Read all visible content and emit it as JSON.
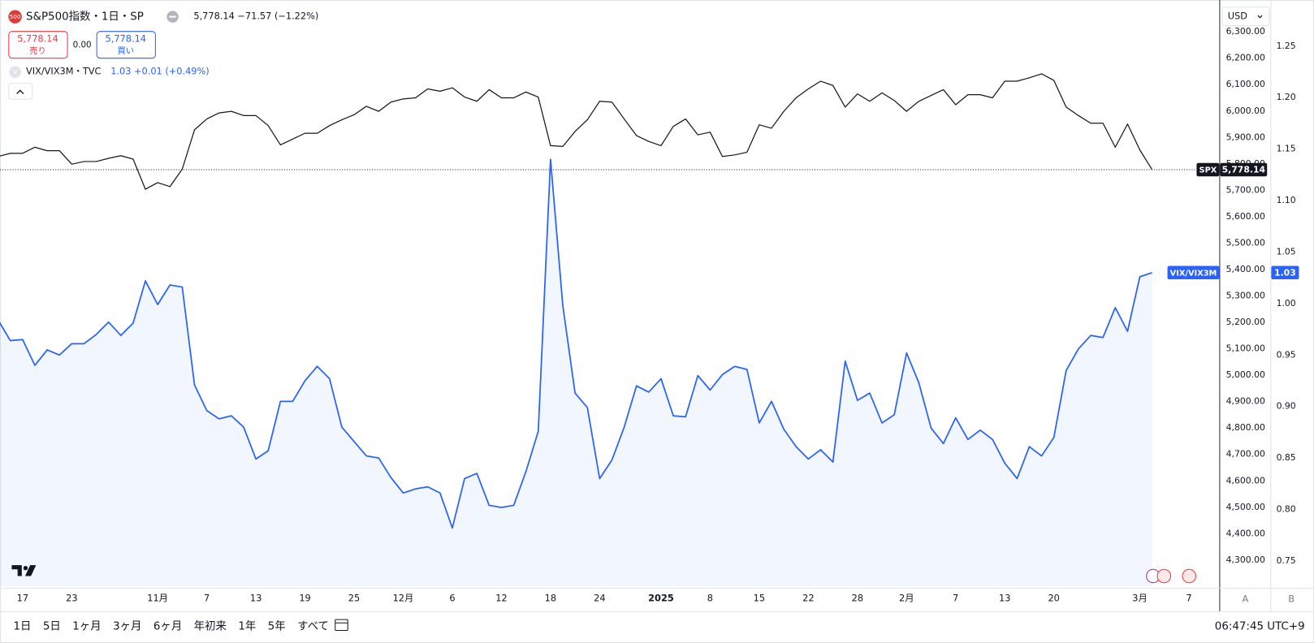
{
  "ui": {
    "symbol_badge": "500",
    "title": "S&P500指数・1日・SP",
    "quote": "5,778.14 −71.57 (−1.22%)",
    "sell_price": "5,778.14",
    "sell_label": "売り",
    "spread": "0.00",
    "buy_price": "5,778.14",
    "buy_label": "買い",
    "compare_badge": "V",
    "compare_name": "VIX/VIX3M・TVC",
    "compare_quote": "1.03 +0.01 (+0.49%)",
    "currency": "USD",
    "spx_tag_value": "5,778.14",
    "vix_tag_value": "1.03",
    "scale_a": "A",
    "scale_b": "B",
    "ranges": [
      "1日",
      "5日",
      "1ヶ月",
      "3ヶ月",
      "6ヶ月",
      "年初来",
      "1年",
      "5年",
      "すべて"
    ],
    "clock": "06:47:45 UTC+9"
  },
  "chart_data": {
    "type": "line",
    "grid": false,
    "categories": [
      null,
      null,
      "17",
      null,
      null,
      null,
      "23",
      null,
      null,
      null,
      null,
      null,
      null,
      "11月",
      null,
      null,
      null,
      "7",
      null,
      null,
      null,
      "13",
      null,
      null,
      null,
      "19",
      null,
      null,
      null,
      "25",
      null,
      null,
      null,
      "12月",
      null,
      null,
      null,
      "6",
      null,
      null,
      null,
      "12",
      null,
      null,
      null,
      "18",
      null,
      null,
      null,
      "24",
      null,
      null,
      null,
      null,
      "2025",
      null,
      null,
      null,
      "8",
      null,
      null,
      null,
      "15",
      null,
      null,
      null,
      "22",
      null,
      null,
      null,
      "28",
      null,
      null,
      null,
      "2月",
      null,
      null,
      null,
      "7",
      null,
      null,
      null,
      "13",
      null,
      null,
      null,
      "20",
      null,
      null,
      null,
      null,
      null,
      null,
      "3月",
      null,
      null,
      null,
      "7"
    ],
    "series": [
      {
        "name": "SPX",
        "color": "#131722",
        "price_line": true,
        "values": [
          5828,
          5840,
          5840,
          5863,
          5850,
          5850,
          5799,
          5809,
          5809,
          5821,
          5831,
          5818,
          5704,
          5729,
          5714,
          5780,
          5929,
          5970,
          5993,
          5999,
          5983,
          5983,
          5945,
          5872,
          5894,
          5916,
          5916,
          5945,
          5967,
          5986,
          6018,
          5999,
          6034,
          6046,
          6050,
          6084,
          6075,
          6088,
          6053,
          6037,
          6081,
          6050,
          6050,
          6072,
          6053,
          5869,
          5866,
          5923,
          5967,
          6037,
          6034,
          5970,
          5907,
          5885,
          5869,
          5942,
          5970,
          5910,
          5920,
          5828,
          5834,
          5844,
          5948,
          5935,
          5999,
          6050,
          6084,
          6113,
          6097,
          6015,
          6065,
          6037,
          6069,
          6040,
          5999,
          6037,
          6059,
          6081,
          6024,
          6062,
          6062,
          6050,
          6113,
          6113,
          6126,
          6141,
          6116,
          6015,
          5983,
          5954,
          5954,
          5863,
          5951,
          5853,
          5778.14,
          null,
          null,
          null
        ]
      },
      {
        "name": "VIX/VIX3M",
        "color": "#2962ff",
        "axis": "y2",
        "area": true,
        "values": [
          0.984,
          0.964,
          0.965,
          0.94,
          0.955,
          0.95,
          0.961,
          0.961,
          0.97,
          0.982,
          0.969,
          0.981,
          1.022,
          0.999,
          1.018,
          1.016,
          0.921,
          0.896,
          0.888,
          0.891,
          0.88,
          0.849,
          0.857,
          0.905,
          0.905,
          0.925,
          0.939,
          0.927,
          0.88,
          0.866,
          0.852,
          0.85,
          0.831,
          0.816,
          0.82,
          0.822,
          0.816,
          0.782,
          0.83,
          0.835,
          0.804,
          0.802,
          0.804,
          0.837,
          0.876,
          1.14,
          0.998,
          0.913,
          0.899,
          0.83,
          0.848,
          0.88,
          0.92,
          0.914,
          0.927,
          0.891,
          0.89,
          0.93,
          0.916,
          0.931,
          0.939,
          0.936,
          0.884,
          0.905,
          0.878,
          0.861,
          0.849,
          0.858,
          0.846,
          0.944,
          0.906,
          0.913,
          0.884,
          0.892,
          0.952,
          0.923,
          0.879,
          0.864,
          0.889,
          0.868,
          0.877,
          0.868,
          0.845,
          0.83,
          0.861,
          0.852,
          0.87,
          0.935,
          0.956,
          0.969,
          0.967,
          0.996,
          0.973,
          1.026,
          1.03,
          null,
          null,
          null
        ]
      }
    ],
    "ylim": [
      4201.7,
      6404.6
    ],
    "yticks": [
      {
        "value": 4300,
        "label": "4,300.00"
      },
      {
        "value": 4400,
        "label": "4,400.00"
      },
      {
        "value": 4500,
        "label": "4,500.00"
      },
      {
        "value": 4600,
        "label": "4,600.00"
      },
      {
        "value": 4700,
        "label": "4,700.00"
      },
      {
        "value": 4800,
        "label": "4,800.00"
      },
      {
        "value": 4900,
        "label": "4,900.00"
      },
      {
        "value": 5000,
        "label": "5,000.00"
      },
      {
        "value": 5100,
        "label": "5,100.00"
      },
      {
        "value": 5200,
        "label": "5,200.00"
      },
      {
        "value": 5300,
        "label": "5,300.00"
      },
      {
        "value": 5400,
        "label": "5,400.00"
      },
      {
        "value": 5500,
        "label": "5,500.00"
      },
      {
        "value": 5600,
        "label": "5,600.00"
      },
      {
        "value": 5700,
        "label": "5,700.00"
      },
      {
        "value": 5800,
        "label": "5,800.00"
      },
      {
        "value": 5900,
        "label": "5,900.00"
      },
      {
        "value": 6000,
        "label": "6,000.00"
      },
      {
        "value": 6100,
        "label": "6,100.00"
      },
      {
        "value": 6200,
        "label": "6,200.00"
      },
      {
        "value": 6300,
        "label": "6,300.00"
      }
    ],
    "y2lim": [
      0.7256,
      1.2907
    ],
    "y2ticks": [
      0.75,
      {
        "value": 0.8,
        "label": "0.80"
      },
      0.85,
      {
        "value": 0.9,
        "label": "0.90"
      },
      0.95,
      {
        "value": 1.0,
        "label": "1.00"
      },
      1.05,
      {
        "value": 1.1,
        "label": "1.10"
      },
      1.15,
      {
        "value": 1.2,
        "label": "1.20"
      },
      1.25
    ]
  }
}
